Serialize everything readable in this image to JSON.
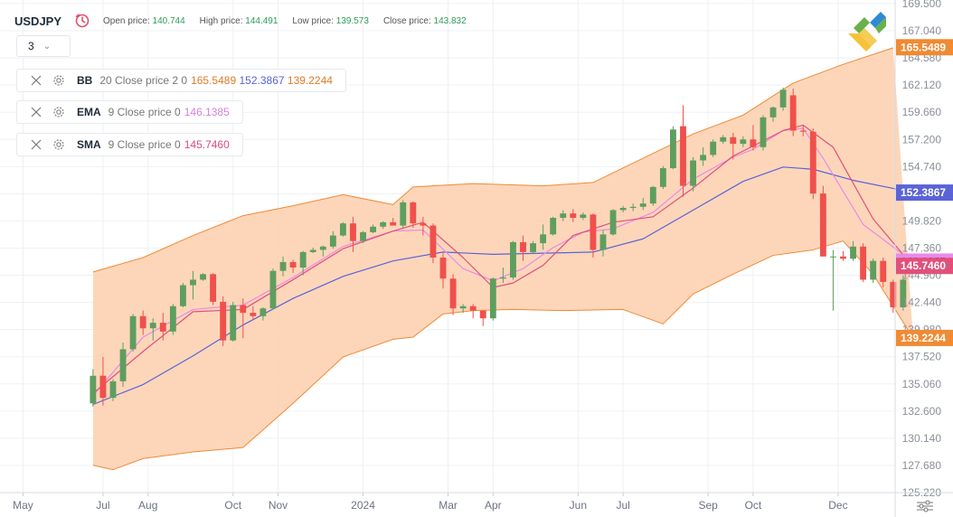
{
  "header": {
    "symbol": "USDJPY",
    "open_label": "Open price:",
    "open_value": "140.744",
    "high_label": "High price:",
    "high_value": "144.491",
    "low_label": "Low price:",
    "low_value": "139.573",
    "close_label": "Close price:",
    "close_value": "143.832"
  },
  "timeframe": {
    "value": "3"
  },
  "indicators": [
    {
      "name": "BB",
      "params": "20 Close price 2 0",
      "values": [
        "165.5489",
        "152.3867",
        "139.2244"
      ]
    },
    {
      "name": "EMA",
      "params": "9 Close price 0",
      "values": [
        "146.1385"
      ]
    },
    {
      "name": "SMA",
      "params": "9 Close price 0",
      "values": [
        "145.7460"
      ]
    }
  ],
  "colors": {
    "up": "#5e9e5e",
    "down": "#f0504c",
    "bb_fill": "#fdcfae",
    "bb_line": "#f08a33",
    "bb_mid": "#5b63d8",
    "ema": "#e88ae8",
    "sma": "#e0507a",
    "grid": "#eef0f3"
  },
  "chart_data": {
    "type": "candlestick",
    "ylim": [
      125.22,
      169.5
    ],
    "y_ticks": [
      "169.500",
      "167.040",
      "164.580",
      "162.120",
      "159.660",
      "157.200",
      "154.740",
      "152.280",
      "149.820",
      "147.360",
      "144.900",
      "142.440",
      "139.980",
      "137.520",
      "135.060",
      "132.600",
      "130.140",
      "127.680",
      "125.220"
    ],
    "x_ticks": [
      {
        "label": "May",
        "x": -7
      },
      {
        "label": "Jul",
        "x": 1
      },
      {
        "label": "Aug",
        "x": 5.5
      },
      {
        "label": "Oct",
        "x": 14
      },
      {
        "label": "Nov",
        "x": 18.5
      },
      {
        "label": "2024",
        "x": 27
      },
      {
        "label": "Mar",
        "x": 35.5
      },
      {
        "label": "Apr",
        "x": 40
      },
      {
        "label": "Jun",
        "x": 48.5
      },
      {
        "label": "Jul",
        "x": 53
      },
      {
        "label": "Sep",
        "x": 61.5
      },
      {
        "label": "Oct",
        "x": 66
      },
      {
        "label": "Dec",
        "x": 74.5
      }
    ],
    "x_range": [
      -9.3,
      80.2
    ],
    "candles": [
      {
        "o": 133.3,
        "h": 136.4,
        "l": 133.0,
        "c": 135.8
      },
      {
        "o": 135.8,
        "h": 137.5,
        "l": 133.1,
        "c": 133.8
      },
      {
        "o": 133.8,
        "h": 135.5,
        "l": 133.5,
        "c": 135.3
      },
      {
        "o": 135.3,
        "h": 138.8,
        "l": 134.8,
        "c": 138.2
      },
      {
        "o": 138.2,
        "h": 141.4,
        "l": 138.0,
        "c": 141.2
      },
      {
        "o": 141.2,
        "h": 141.7,
        "l": 139.5,
        "c": 140.1
      },
      {
        "o": 140.1,
        "h": 141.0,
        "l": 139.0,
        "c": 140.6
      },
      {
        "o": 140.6,
        "h": 141.5,
        "l": 139.0,
        "c": 139.8
      },
      {
        "o": 139.8,
        "h": 142.3,
        "l": 139.5,
        "c": 142.1
      },
      {
        "o": 142.1,
        "h": 144.2,
        "l": 142.0,
        "c": 144.0
      },
      {
        "o": 144.0,
        "h": 145.3,
        "l": 142.7,
        "c": 144.5
      },
      {
        "o": 144.5,
        "h": 145.1,
        "l": 144.4,
        "c": 145.0
      },
      {
        "o": 145.0,
        "h": 145.1,
        "l": 142.2,
        "c": 142.5
      },
      {
        "o": 142.5,
        "h": 143.0,
        "l": 138.5,
        "c": 139.0
      },
      {
        "o": 139.0,
        "h": 142.5,
        "l": 138.9,
        "c": 142.2
      },
      {
        "o": 142.2,
        "h": 142.8,
        "l": 139.2,
        "c": 141.5
      },
      {
        "o": 141.5,
        "h": 142.1,
        "l": 140.9,
        "c": 141.2
      },
      {
        "o": 141.2,
        "h": 142.0,
        "l": 140.8,
        "c": 141.9
      },
      {
        "o": 141.9,
        "h": 145.5,
        "l": 141.8,
        "c": 145.3
      },
      {
        "o": 145.3,
        "h": 146.6,
        "l": 144.8,
        "c": 146.1
      },
      {
        "o": 146.1,
        "h": 146.3,
        "l": 145.1,
        "c": 145.6
      },
      {
        "o": 145.6,
        "h": 147.1,
        "l": 144.9,
        "c": 147.0
      },
      {
        "o": 147.0,
        "h": 147.4,
        "l": 146.9,
        "c": 147.2
      },
      {
        "o": 147.2,
        "h": 147.6,
        "l": 146.6,
        "c": 147.5
      },
      {
        "o": 147.5,
        "h": 148.9,
        "l": 147.3,
        "c": 148.5
      },
      {
        "o": 148.5,
        "h": 149.7,
        "l": 148.4,
        "c": 149.6
      },
      {
        "o": 149.6,
        "h": 150.2,
        "l": 147.0,
        "c": 148.0
      },
      {
        "o": 148.0,
        "h": 148.9,
        "l": 147.8,
        "c": 148.8
      },
      {
        "o": 148.8,
        "h": 149.5,
        "l": 148.7,
        "c": 149.3
      },
      {
        "o": 149.3,
        "h": 149.8,
        "l": 149.1,
        "c": 149.7
      },
      {
        "o": 149.7,
        "h": 150.1,
        "l": 149.5,
        "c": 149.4
      },
      {
        "o": 149.4,
        "h": 151.7,
        "l": 149.2,
        "c": 151.5
      },
      {
        "o": 151.5,
        "h": 151.6,
        "l": 149.2,
        "c": 149.6
      },
      {
        "o": 149.6,
        "h": 150.2,
        "l": 148.5,
        "c": 149.4
      },
      {
        "o": 149.4,
        "h": 149.6,
        "l": 146.0,
        "c": 146.5
      },
      {
        "o": 146.5,
        "h": 146.9,
        "l": 143.7,
        "c": 144.6
      },
      {
        "o": 144.6,
        "h": 145.0,
        "l": 141.3,
        "c": 141.9
      },
      {
        "o": 141.9,
        "h": 142.3,
        "l": 141.5,
        "c": 142.1
      },
      {
        "o": 142.1,
        "h": 142.3,
        "l": 141.0,
        "c": 141.7
      },
      {
        "o": 141.7,
        "h": 141.7,
        "l": 140.3,
        "c": 141.0
      },
      {
        "o": 141.0,
        "h": 144.7,
        "l": 140.8,
        "c": 144.6
      },
      {
        "o": 144.6,
        "h": 145.6,
        "l": 144.2,
        "c": 144.7
      },
      {
        "o": 144.7,
        "h": 148.0,
        "l": 144.5,
        "c": 147.9
      },
      {
        "o": 147.9,
        "h": 148.5,
        "l": 146.2,
        "c": 147.0
      },
      {
        "o": 147.0,
        "h": 148.0,
        "l": 146.8,
        "c": 147.8
      },
      {
        "o": 147.8,
        "h": 149.5,
        "l": 147.2,
        "c": 148.6
      },
      {
        "o": 148.6,
        "h": 150.2,
        "l": 148.5,
        "c": 150.1
      },
      {
        "o": 150.1,
        "h": 150.8,
        "l": 149.8,
        "c": 150.5
      },
      {
        "o": 150.5,
        "h": 150.9,
        "l": 149.7,
        "c": 150.1
      },
      {
        "o": 150.1,
        "h": 150.6,
        "l": 149.9,
        "c": 150.4
      },
      {
        "o": 150.4,
        "h": 150.5,
        "l": 146.5,
        "c": 147.2
      },
      {
        "o": 147.2,
        "h": 149.0,
        "l": 146.6,
        "c": 148.6
      },
      {
        "o": 148.6,
        "h": 150.9,
        "l": 148.5,
        "c": 150.8
      },
      {
        "o": 150.8,
        "h": 151.2,
        "l": 150.6,
        "c": 151.0
      },
      {
        "o": 151.0,
        "h": 151.4,
        "l": 150.7,
        "c": 151.1
      },
      {
        "o": 151.1,
        "h": 151.9,
        "l": 150.8,
        "c": 151.4
      },
      {
        "o": 151.4,
        "h": 153.0,
        "l": 151.2,
        "c": 152.9
      },
      {
        "o": 152.9,
        "h": 154.8,
        "l": 152.7,
        "c": 154.6
      },
      {
        "o": 154.6,
        "h": 158.4,
        "l": 154.5,
        "c": 158.1
      },
      {
        "o": 158.4,
        "h": 160.3,
        "l": 152.0,
        "c": 153.0
      },
      {
        "o": 153.0,
        "h": 155.6,
        "l": 152.5,
        "c": 155.3
      },
      {
        "o": 155.3,
        "h": 156.5,
        "l": 154.8,
        "c": 155.8
      },
      {
        "o": 155.8,
        "h": 157.2,
        "l": 155.6,
        "c": 157.0
      },
      {
        "o": 157.0,
        "h": 157.6,
        "l": 156.8,
        "c": 157.4
      },
      {
        "o": 157.4,
        "h": 157.8,
        "l": 155.4,
        "c": 156.8
      },
      {
        "o": 156.8,
        "h": 157.5,
        "l": 156.5,
        "c": 157.2
      },
      {
        "o": 157.2,
        "h": 158.5,
        "l": 156.2,
        "c": 156.5
      },
      {
        "o": 156.5,
        "h": 159.4,
        "l": 156.2,
        "c": 159.2
      },
      {
        "o": 159.2,
        "h": 160.2,
        "l": 158.8,
        "c": 160.1
      },
      {
        "o": 160.1,
        "h": 161.9,
        "l": 159.8,
        "c": 161.7
      },
      {
        "o": 161.2,
        "h": 161.8,
        "l": 157.5,
        "c": 158.0
      },
      {
        "o": 158.0,
        "h": 158.5,
        "l": 157.5,
        "c": 157.9
      },
      {
        "o": 157.9,
        "h": 158.2,
        "l": 151.8,
        "c": 152.3
      },
      {
        "o": 152.3,
        "h": 153.0,
        "l": 146.8,
        "c": 146.6
      },
      {
        "o": 146.6,
        "h": 147.2,
        "l": 141.7,
        "c": 146.6
      },
      {
        "o": 146.6,
        "h": 147.1,
        "l": 146.2,
        "c": 146.4
      },
      {
        "o": 146.4,
        "h": 148.0,
        "l": 146.2,
        "c": 147.5
      },
      {
        "o": 147.5,
        "h": 147.8,
        "l": 144.3,
        "c": 144.5
      },
      {
        "o": 144.5,
        "h": 146.4,
        "l": 144.2,
        "c": 146.2
      },
      {
        "o": 146.2,
        "h": 146.5,
        "l": 143.8,
        "c": 144.3
      },
      {
        "o": 144.3,
        "h": 144.5,
        "l": 141.5,
        "c": 142.0
      },
      {
        "o": 142.0,
        "h": 144.9,
        "l": 141.7,
        "c": 144.5
      }
    ],
    "bb_upper": [
      [
        0,
        145.2
      ],
      [
        5,
        146.5
      ],
      [
        10,
        148.5
      ],
      [
        15,
        150.3
      ],
      [
        20,
        151.2
      ],
      [
        25,
        152.2
      ],
      [
        30,
        151.3
      ],
      [
        32,
        152.9
      ],
      [
        38,
        153.2
      ],
      [
        45,
        153.0
      ],
      [
        50,
        153.3
      ],
      [
        55,
        155.5
      ],
      [
        60,
        157.7
      ],
      [
        65,
        159.4
      ],
      [
        70,
        162.3
      ],
      [
        75,
        164.0
      ],
      [
        80,
        165.5
      ]
    ],
    "bb_lower": [
      [
        0,
        127.7
      ],
      [
        2,
        127.3
      ],
      [
        5,
        128.3
      ],
      [
        10,
        128.9
      ],
      [
        15,
        129.3
      ],
      [
        20,
        133.3
      ],
      [
        25,
        137.5
      ],
      [
        30,
        139.1
      ],
      [
        32,
        139.3
      ],
      [
        35,
        141.4
      ],
      [
        38,
        141.7
      ],
      [
        42,
        141.8
      ],
      [
        47,
        141.7
      ],
      [
        53,
        141.8
      ],
      [
        57,
        140.5
      ],
      [
        60,
        143.2
      ],
      [
        64,
        145.0
      ],
      [
        68,
        146.7
      ],
      [
        72,
        147.2
      ],
      [
        75,
        148.0
      ],
      [
        78,
        145.0
      ],
      [
        82,
        139.2
      ]
    ],
    "bb_mid": [
      [
        0,
        133.2
      ],
      [
        5,
        135.0
      ],
      [
        10,
        137.6
      ],
      [
        15,
        140.4
      ],
      [
        20,
        142.8
      ],
      [
        25,
        144.8
      ],
      [
        30,
        146.2
      ],
      [
        35,
        147.0
      ],
      [
        40,
        146.8
      ],
      [
        45,
        146.9
      ],
      [
        50,
        147.0
      ],
      [
        55,
        148.2
      ],
      [
        60,
        150.8
      ],
      [
        65,
        153.4
      ],
      [
        69,
        154.7
      ],
      [
        72,
        154.5
      ],
      [
        76,
        153.5
      ],
      [
        82,
        152.4
      ]
    ],
    "ema": [
      [
        0,
        134.0
      ],
      [
        5,
        139.3
      ],
      [
        10,
        141.8
      ],
      [
        15,
        142.2
      ],
      [
        20,
        144.7
      ],
      [
        25,
        147.5
      ],
      [
        30,
        148.9
      ],
      [
        33,
        149.0
      ],
      [
        37,
        145.5
      ],
      [
        40,
        144.4
      ],
      [
        43,
        145.5
      ],
      [
        46,
        147.4
      ],
      [
        49,
        148.8
      ],
      [
        52,
        149.1
      ],
      [
        56,
        150.6
      ],
      [
        60,
        153.6
      ],
      [
        64,
        155.6
      ],
      [
        66,
        156.3
      ],
      [
        69,
        158.0
      ],
      [
        71,
        158.2
      ],
      [
        73,
        155.5
      ],
      [
        77,
        149.5
      ],
      [
        82,
        146.1
      ]
    ],
    "sma": [
      [
        0,
        134.2
      ],
      [
        5,
        138.0
      ],
      [
        10,
        141.6
      ],
      [
        15,
        141.8
      ],
      [
        20,
        144.5
      ],
      [
        25,
        147.3
      ],
      [
        30,
        148.9
      ],
      [
        33,
        149.7
      ],
      [
        37,
        146.5
      ],
      [
        40,
        143.8
      ],
      [
        42,
        144.2
      ],
      [
        45,
        145.8
      ],
      [
        48,
        148.5
      ],
      [
        52,
        149.7
      ],
      [
        56,
        150.2
      ],
      [
        60,
        152.8
      ],
      [
        64,
        155.7
      ],
      [
        66,
        156.6
      ],
      [
        69,
        158.0
      ],
      [
        71,
        158.5
      ],
      [
        74,
        156.5
      ],
      [
        78,
        150.0
      ],
      [
        82,
        145.7
      ]
    ],
    "price_labels": [
      "165.5489",
      "152.3867",
      "146.1385",
      "145.7460",
      "139.2244"
    ]
  }
}
